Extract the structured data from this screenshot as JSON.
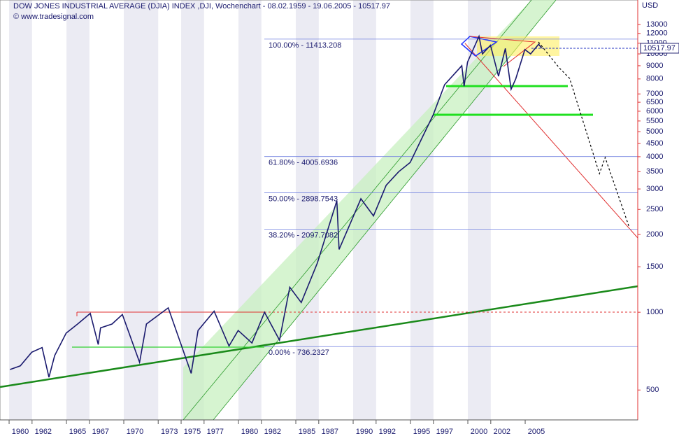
{
  "chart_data": {
    "type": "line",
    "title": "DOW JONES INDUSTRIAL AVERAGE (DJIA) INDEX ,DJI, Wochenchart - 08.02.1959 - 19.06.2005 - 10517.97",
    "subtitle": "© www.tradesignal.com",
    "y_unit": "USD",
    "log_scale": true,
    "xlim": [
      1958.23,
      2013.84
    ],
    "xticks": [
      1960,
      1962,
      1965,
      1967,
      1970,
      1973,
      1975,
      1977,
      1980,
      1982,
      1985,
      1987,
      1990,
      1992,
      1995,
      1997,
      2000,
      2002,
      2005
    ],
    "ylim": [
      383,
      16170
    ],
    "yticks": [
      500,
      1000,
      1500,
      2000,
      2500,
      3000,
      3500,
      4000,
      4500,
      5000,
      5500,
      6000,
      6500,
      7000,
      8000,
      9000,
      10000,
      11000,
      12000,
      13000
    ],
    "series": [
      {
        "color": "#1a1a6e",
        "x": [
          1959.1,
          1960,
          1961,
          1961.9,
          1962.5,
          1963,
          1964,
          1965,
          1966.1,
          1966.8,
          1967,
          1968,
          1968.9,
          1970.4,
          1971,
          1972.9,
          1974.9,
          1975.5,
          1976.9,
          1978.2,
          1979,
          1980.2,
          1981.3,
          1982.6,
          1983.5,
          1984.5,
          1985.9,
          1987.6,
          1987.8,
          1989.7,
          1990.8,
          1991.9,
          1993,
          1994,
          1995,
          1996,
          1997,
          1998.5,
          1998.7,
          1999,
          2000,
          2000.3,
          2001,
          2001.7,
          2002.3,
          2002.8,
          2003.2,
          2004,
          2004.5,
          2005.2,
          2005.46
        ],
        "values": [
          600,
          620,
          700,
          730,
          560,
          680,
          830,
          900,
          990,
          750,
          870,
          900,
          980,
          640,
          900,
          1040,
          580,
          850,
          1010,
          740,
          850,
          760,
          1000,
          780,
          1250,
          1090,
          1550,
          2700,
          1750,
          2750,
          2360,
          3100,
          3500,
          3800,
          4700,
          5800,
          7600,
          9000,
          7500,
          9300,
          11700,
          10000,
          10800,
          8200,
          10500,
          7300,
          8000,
          10400,
          10000,
          10900,
          10517.97
        ]
      },
      {
        "color": "#000000",
        "dashed": true,
        "x": [
          2005.18,
          2007.0,
          2007.9,
          2010.5,
          2011.0,
          2013.1
        ],
        "values": [
          11120,
          8830,
          8040,
          3440,
          3970,
          2130
        ]
      }
    ],
    "fib_levels": [
      {
        "value": 11413.208,
        "label": "100.00% - 11413.208"
      },
      {
        "value": 4005.6936,
        "label": "61.80% - 4005.6936"
      },
      {
        "value": 2898.7543,
        "label": "50.00% - 2898.7543"
      },
      {
        "value": 2097.7082,
        "label": "38.20% - 2097.7082"
      },
      {
        "value": 736.2327,
        "label": "0.00% - 736.2327"
      }
    ],
    "last_price": 10517.97
  }
}
